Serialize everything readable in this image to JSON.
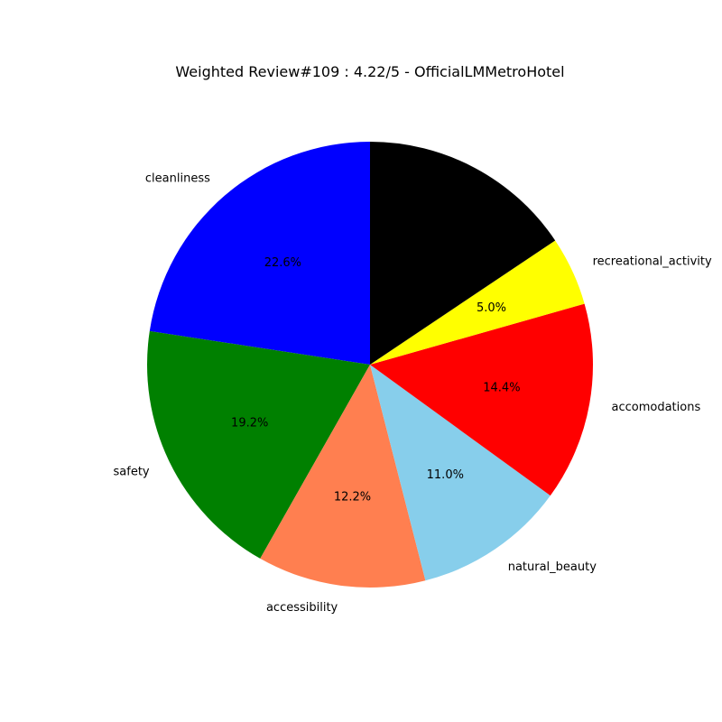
{
  "chart_data": {
    "type": "pie",
    "title": "Weighted Review#109 : 4.22/5 - OfficialLMMetroHotel",
    "slices": [
      {
        "label": "cleanliness",
        "value": 22.6,
        "pct_label": "22.6%",
        "color": "#0000ff"
      },
      {
        "label": "safety",
        "value": 19.2,
        "pct_label": "19.2%",
        "color": "#008000"
      },
      {
        "label": "accessibility",
        "value": 12.2,
        "pct_label": "12.2%",
        "color": "#ff7f50"
      },
      {
        "label": "natural_beauty",
        "value": 11.0,
        "pct_label": "11.0%",
        "color": "#87ceeb"
      },
      {
        "label": "accomodations",
        "value": 14.4,
        "pct_label": "14.4%",
        "color": "#ff0000"
      },
      {
        "label": "recreational_activity",
        "value": 5.0,
        "pct_label": "5.0%",
        "color": "#ffff00"
      },
      {
        "label": "",
        "value": 15.6,
        "pct_label": "",
        "color": "#000000"
      }
    ],
    "start_angle_deg": 90,
    "direction": "counterclockwise"
  }
}
